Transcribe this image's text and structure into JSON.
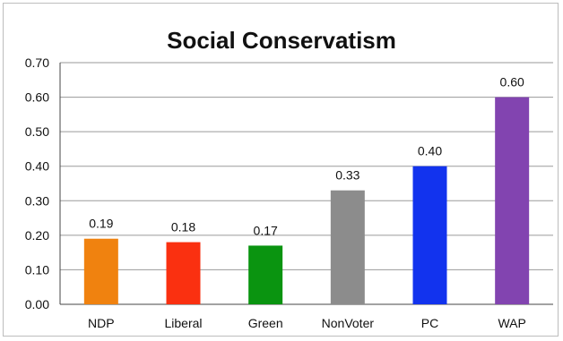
{
  "chart_data": {
    "type": "bar",
    "title": "Social Conservatism",
    "xlabel": "",
    "ylabel": "",
    "categories": [
      "NDP",
      "Liberal",
      "Green",
      "NonVoter",
      "PC",
      "WAP"
    ],
    "values": [
      0.19,
      0.18,
      0.17,
      0.33,
      0.4,
      0.6
    ],
    "value_labels": [
      "0.19",
      "0.18",
      "0.17",
      "0.33",
      "0.40",
      "0.60"
    ],
    "colors": [
      "#f0820f",
      "#fa3010",
      "#0a9410",
      "#8c8c8c",
      "#1233ee",
      "#8244b0"
    ],
    "ylim": [
      0,
      0.7
    ],
    "yticks": [
      0,
      0.1,
      0.2,
      0.3,
      0.4,
      0.5,
      0.6,
      0.7
    ],
    "ytick_labels": [
      "0.00",
      "0.10",
      "0.20",
      "0.30",
      "0.40",
      "0.50",
      "0.60",
      "0.70"
    ],
    "grid": true,
    "legend": "none"
  }
}
